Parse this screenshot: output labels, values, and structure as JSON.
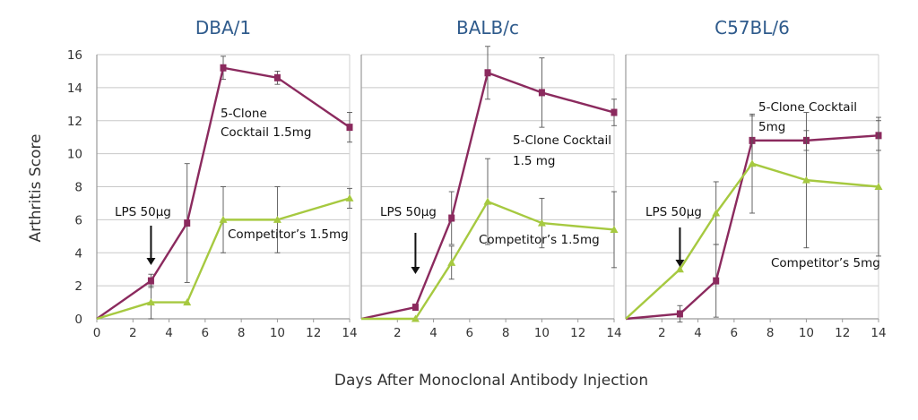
{
  "chart_data": {
    "type": "line",
    "ylabel": "Arthritis Score",
    "xlabel": "Days After Monoclonal Antibody Injection",
    "ylim": [
      0,
      16
    ],
    "y_ticks": [
      "0",
      "2",
      "4",
      "6",
      "8",
      "10",
      "12",
      "14",
      "16"
    ],
    "xlim": [
      0,
      14
    ],
    "x_ticks": [
      "0",
      "2",
      "4",
      "6",
      "8",
      "10",
      "12",
      "14"
    ],
    "grid": "horizontal",
    "colors": {
      "cocktail": "#8b2a5e",
      "competitor": "#a6c940",
      "grid": "#c8c8c8",
      "title": "#2f5b8c"
    },
    "panels": [
      {
        "title": "DBA/1",
        "series": [
          {
            "key": "cocktail",
            "x": [
              0,
              3,
              5,
              7,
              10,
              14
            ],
            "y": [
              0,
              2.3,
              5.8,
              15.2,
              14.6,
              11.6
            ],
            "err": [
              0,
              0.4,
              3.6,
              0.7,
              0.4,
              0.9
            ]
          },
          {
            "key": "competitor",
            "x": [
              0,
              3,
              5,
              7,
              10,
              14
            ],
            "y": [
              0,
              1.0,
              1.0,
              6.0,
              6.0,
              7.3
            ],
            "err": [
              0,
              1.0,
              0,
              2.0,
              2.0,
              0.6
            ]
          }
        ],
        "annotations": {
          "lps": {
            "text": "LPS 50μg",
            "day": 3
          },
          "cocktail_label": [
            "5-Clone",
            "Cocktail  1.5mg"
          ],
          "competitor_label": [
            "Competitor’s 1.5mg"
          ]
        }
      },
      {
        "title": "BALB/c",
        "series": [
          {
            "key": "cocktail",
            "x": [
              0,
              3,
              5,
              7,
              10,
              14
            ],
            "y": [
              0,
              0.7,
              6.1,
              14.9,
              13.7,
              12.5
            ],
            "err": [
              0,
              0,
              1.6,
              1.6,
              2.1,
              0.8
            ]
          },
          {
            "key": "competitor",
            "x": [
              0,
              3,
              5,
              7,
              10,
              14
            ],
            "y": [
              0,
              0,
              3.4,
              7.1,
              5.8,
              5.4
            ],
            "err": [
              0,
              0,
              1.0,
              2.6,
              1.5,
              2.3
            ]
          }
        ],
        "annotations": {
          "lps": {
            "text": "LPS 50μg",
            "day": 3
          },
          "cocktail_label": [
            "5-Clone Cocktail",
            "1.5 mg"
          ],
          "competitor_label": [
            "Competitor’s 1.5mg"
          ]
        }
      },
      {
        "title": "C57BL/6",
        "series": [
          {
            "key": "cocktail",
            "x": [
              0,
              3,
              5,
              7,
              10,
              14
            ],
            "y": [
              0,
              0.3,
              2.3,
              10.8,
              10.8,
              11.1
            ],
            "err": [
              0,
              0.5,
              2.2,
              1.5,
              0.6,
              0.9
            ]
          },
          {
            "key": "competitor",
            "x": [
              0,
              3,
              5,
              7,
              10,
              14
            ],
            "y": [
              0,
              3.0,
              6.4,
              9.4,
              8.4,
              8.0
            ],
            "err": [
              0,
              0,
              1.9,
              3.0,
              4.1,
              4.2
            ]
          }
        ],
        "annotations": {
          "lps": {
            "text": "LPS 50μg",
            "day": 3
          },
          "cocktail_label": [
            "5-Clone Cocktail",
            "5mg"
          ],
          "competitor_label": [
            "Competitor’s 5mg"
          ]
        }
      }
    ]
  }
}
